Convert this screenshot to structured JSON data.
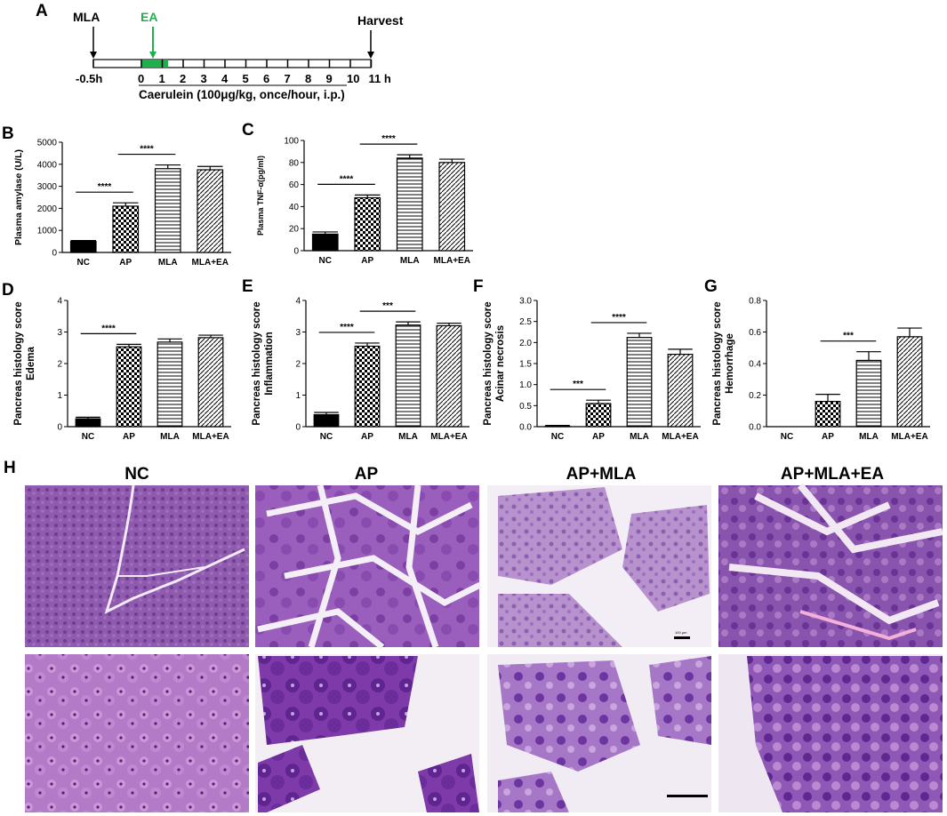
{
  "panel_letters": [
    "A",
    "B",
    "C",
    "D",
    "E",
    "F",
    "G",
    "H"
  ],
  "timeline": {
    "top_labels": {
      "mla": "MLA",
      "ea": "EA",
      "harvest": "Harvest"
    },
    "tick_labels": [
      "-0.5h",
      "0",
      "1",
      "2",
      "3",
      "4",
      "5",
      "6",
      "7",
      "8",
      "9",
      "10",
      "11 h"
    ],
    "caption": "Caerulein (100μg/kg, once/hour, i.p.)",
    "colors": {
      "ea": "#1fb04b",
      "line": "#000000"
    }
  },
  "chart_data": [
    {
      "panel": "B",
      "type": "bar",
      "categories": [
        "NC",
        "AP",
        "MLA",
        "MLA+EA"
      ],
      "values": [
        500,
        2100,
        3800,
        3750
      ],
      "errors": [
        40,
        150,
        170,
        150
      ],
      "ylabel": "Plasma amylase  (U/L)",
      "ylim": [
        0,
        5000
      ],
      "yticks": [
        "0",
        "1000",
        "2000",
        "3000",
        "4000",
        "5000"
      ],
      "significance": [
        {
          "from": 0,
          "to": 1,
          "label": "****"
        },
        {
          "from": 1,
          "to": 2,
          "label": "****"
        }
      ]
    },
    {
      "panel": "C",
      "type": "bar",
      "categories": [
        "NC",
        "AP",
        "MLA",
        "MLA+EA"
      ],
      "values": [
        15,
        48,
        84,
        80
      ],
      "errors": [
        2,
        2.5,
        3,
        3
      ],
      "ylabel": "Plasma TNF-α(pg/ml)",
      "ylim": [
        0,
        100
      ],
      "yticks": [
        "0",
        "20",
        "40",
        "60",
        "80",
        "100"
      ],
      "significance": [
        {
          "from": 0,
          "to": 1,
          "label": "****"
        },
        {
          "from": 1,
          "to": 2,
          "label": "****"
        }
      ]
    },
    {
      "panel": "D",
      "type": "bar",
      "categories": [
        "NC",
        "AP",
        "MLA",
        "MLA+EA"
      ],
      "values": [
        0.25,
        2.53,
        2.68,
        2.82
      ],
      "errors": [
        0.05,
        0.08,
        0.1,
        0.08
      ],
      "ylabel": "Pancreas histology score",
      "ylabel2": "Edema",
      "ylim": [
        0,
        4
      ],
      "yticks": [
        "0",
        "1",
        "2",
        "3",
        "4"
      ],
      "significance": [
        {
          "from": 0,
          "to": 1,
          "label": "****"
        }
      ]
    },
    {
      "panel": "E",
      "type": "bar",
      "categories": [
        "NC",
        "AP",
        "MLA",
        "MLA+EA"
      ],
      "values": [
        0.38,
        2.55,
        3.22,
        3.2
      ],
      "errors": [
        0.07,
        0.1,
        0.1,
        0.08
      ],
      "ylabel": "Pancreas histology score",
      "ylabel2": "Inflammation",
      "ylim": [
        0,
        4
      ],
      "yticks": [
        "0",
        "1",
        "2",
        "3",
        "4"
      ],
      "significance": [
        {
          "from": 0,
          "to": 1,
          "label": "****"
        },
        {
          "from": 1,
          "to": 2,
          "label": "***"
        }
      ]
    },
    {
      "panel": "F",
      "type": "bar",
      "categories": [
        "NC",
        "AP",
        "MLA",
        "MLA+EA"
      ],
      "values": [
        0.01,
        0.55,
        2.12,
        1.72
      ],
      "errors": [
        0.02,
        0.08,
        0.1,
        0.12
      ],
      "ylabel": "Pancreas histology score",
      "ylabel2": "Acinar necrosis",
      "ylim": [
        0,
        3
      ],
      "yticks": [
        "0.0",
        "0.5",
        "1.0",
        "1.5",
        "2.0",
        "2.5",
        "3.0"
      ],
      "significance": [
        {
          "from": 0,
          "to": 1,
          "label": "***"
        },
        {
          "from": 1,
          "to": 2,
          "label": "****"
        }
      ]
    },
    {
      "panel": "G",
      "type": "bar",
      "categories": [
        "NC",
        "AP",
        "MLA",
        "MLA+EA"
      ],
      "values": [
        0,
        0.16,
        0.42,
        0.57
      ],
      "errors": [
        0,
        0.045,
        0.055,
        0.055
      ],
      "ylabel": "Pancreas histology score",
      "ylabel2": "Hemorrhage",
      "ylim": [
        0,
        0.8
      ],
      "yticks": [
        "0.0",
        "0.2",
        "0.4",
        "0.6",
        "0.8"
      ],
      "significance": [
        {
          "from": 1,
          "to": 2,
          "label": "***"
        }
      ]
    }
  ],
  "histology": {
    "column_labels": [
      "NC",
      "AP",
      "AP+MLA",
      "AP+MLA+EA"
    ],
    "scale_text": "100 μm"
  }
}
